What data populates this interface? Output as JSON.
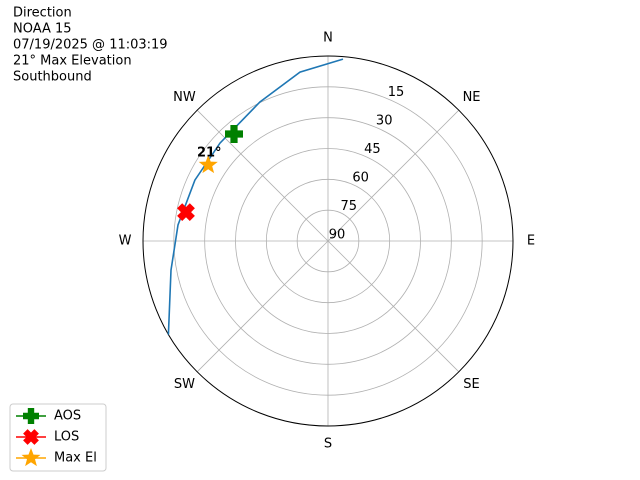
{
  "chart_data": {
    "type": "polar",
    "title": [
      "Direction",
      "NOAA 15",
      "07/19/2025 @ 11:03:19",
      "21° Max Elevation",
      "Southbound"
    ],
    "rlim": [
      90,
      0
    ],
    "rticks": [
      15,
      30,
      45,
      60,
      75,
      90
    ],
    "theta_ticks": [
      {
        "value": 0,
        "label": "N"
      },
      {
        "value": 45,
        "label": "NE"
      },
      {
        "value": 90,
        "label": "E"
      },
      {
        "value": 135,
        "label": "SE"
      },
      {
        "value": 180,
        "label": "S"
      },
      {
        "value": 225,
        "label": "SW"
      },
      {
        "value": 270,
        "label": "W"
      },
      {
        "value": 315,
        "label": "NW"
      }
    ],
    "grid": true,
    "track": {
      "color": "#1f77b4",
      "azimuth": [
        4.7,
        350.6,
        333.9,
        312.2,
        294.6,
        276.1,
        259.5,
        239.6
      ],
      "elevation": [
        1.2,
        6.7,
        14.7,
        19.1,
        18.8,
        16.6,
        12.3,
        0
      ]
    },
    "series": [
      {
        "name": "AOS",
        "color": "#008000",
        "marker": "plus",
        "azimuth": [
          318.7
        ],
        "elevation": [
          20.7
        ]
      },
      {
        "name": "LOS",
        "color": "#ff0000",
        "marker": "x",
        "azimuth": [
          281.5
        ],
        "elevation": [
          19.5
        ]
      },
      {
        "name": "Max El",
        "color": "#ffa500",
        "marker": "star",
        "azimuth": [
          302.4
        ],
        "elevation": [
          21
        ]
      }
    ],
    "annotation": "21°",
    "legend": "lower left"
  }
}
